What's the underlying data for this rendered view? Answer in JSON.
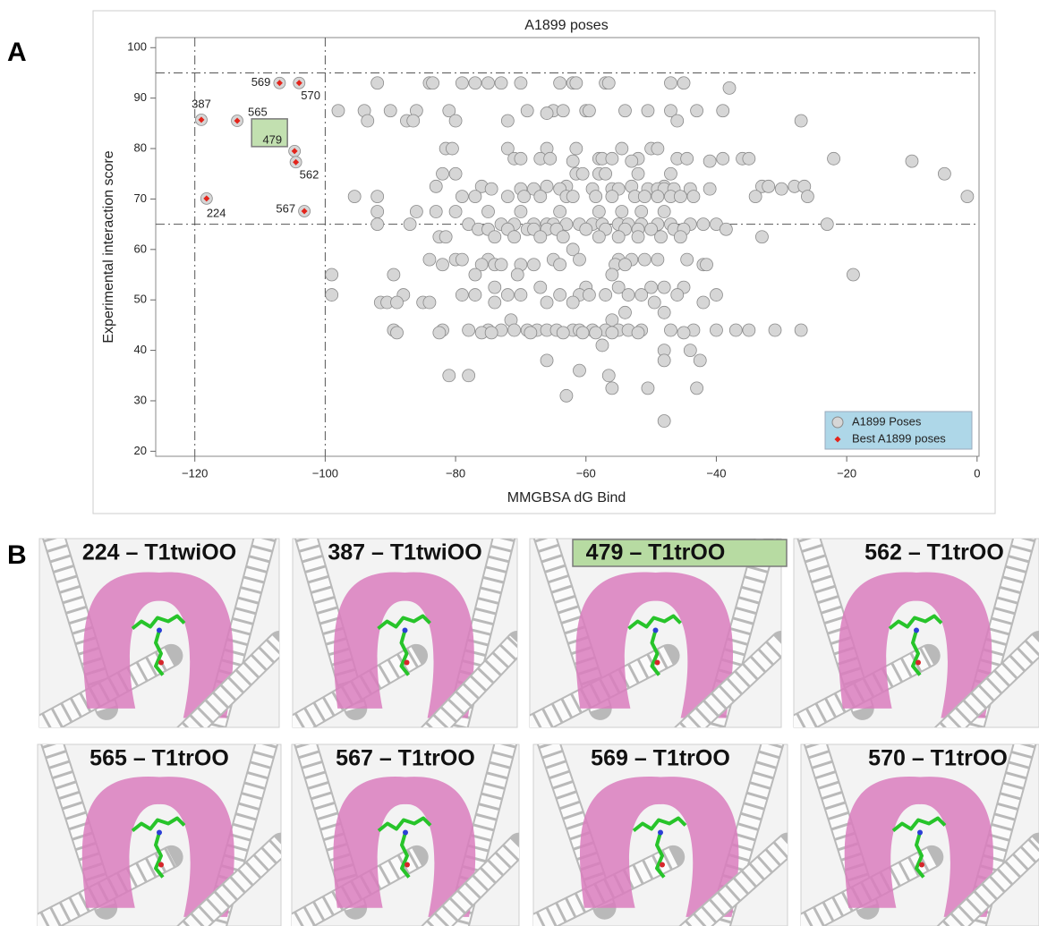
{
  "chart_data": {
    "type": "scatter",
    "title": "A1899 poses",
    "x_label": "MMGBSA dG Bind",
    "y_label": "Experimental interaction score",
    "xlim": [
      -126,
      0.3
    ],
    "ylim": [
      19,
      102
    ],
    "xticks": [
      {
        "value": -120,
        "label": "−120"
      },
      {
        "value": -100,
        "label": "−100"
      },
      {
        "value": -80,
        "label": "−80"
      },
      {
        "value": -60,
        "label": "−60"
      },
      {
        "value": -40,
        "label": "−40"
      },
      {
        "value": -20,
        "label": "−20"
      },
      0
    ],
    "yticks": [
      20,
      30,
      40,
      50,
      60,
      70,
      80,
      90,
      100
    ],
    "reference_lines": {
      "x": [
        -120,
        -100
      ],
      "y": [
        95,
        65
      ]
    },
    "legend": "lower right",
    "series": [
      {
        "name": "A1899 Poses",
        "color": "#d6d6d6",
        "x": [
          -92,
          -84,
          -83.5,
          -79,
          -77,
          -75,
          -73,
          -70,
          -64,
          -62,
          -61.5,
          -57,
          -56.5,
          -47,
          -45,
          -38,
          -98,
          -94,
          -90,
          -86,
          -81,
          -69,
          -65,
          -63.5,
          -60,
          -59.5,
          -54,
          -50.5,
          -47,
          -43,
          -39,
          -93.5,
          -87.5,
          -86.5,
          -80,
          -72,
          -46,
          -27,
          -66,
          -81.5,
          -80.5,
          -72,
          -66,
          -61.5,
          -54.5,
          -50,
          -49,
          -71,
          -70,
          -67,
          -65.5,
          -58,
          -57.5,
          -56,
          -52,
          -46,
          -44.5,
          -39,
          -36,
          -35,
          -22,
          -62,
          -53,
          -41,
          -10,
          -82,
          -80,
          -61.5,
          -60.5,
          -58,
          -57,
          -52,
          -47,
          -5,
          -83,
          -76,
          -66,
          -63,
          -53,
          -48,
          -33,
          -32,
          -28,
          -26.5,
          -74.5,
          -70,
          -68,
          -64,
          -59,
          -56,
          -55,
          -50.5,
          -49,
          -48,
          -46.5,
          -44,
          -41,
          -30,
          -95.5,
          -92,
          -79,
          -77,
          -72,
          -69.5,
          -67,
          -63,
          -62,
          -58.5,
          -56,
          -52.5,
          -51,
          -49,
          -47,
          -45.5,
          -43.5,
          -34,
          -26,
          -1.5,
          -92,
          -86,
          -83,
          -80,
          -75,
          -70,
          -64,
          -58,
          -54.5,
          -51.5,
          -48,
          -92,
          -87,
          -78,
          -73,
          -71,
          -68,
          -66,
          -65,
          -63,
          -61,
          -59,
          -57.5,
          -55,
          -53.5,
          -51.5,
          -49,
          -47,
          -44,
          -42,
          -40,
          -23,
          -76.5,
          -75,
          -72,
          -69,
          -68,
          -66,
          -64.5,
          -60,
          -57,
          -54,
          -52,
          -50,
          -46.5,
          -45,
          -38.5,
          -82.5,
          -81.5,
          -74,
          -71,
          -67,
          -63.5,
          -58,
          -55,
          -52,
          -48.5,
          -45.5,
          -33,
          -62,
          -84,
          -80,
          -79,
          -75,
          -65,
          -61,
          -55,
          -53,
          -51,
          -49,
          -44.5,
          -82,
          -76,
          -74,
          -73,
          -70,
          -68,
          -64,
          -55.5,
          -54,
          -42,
          -41.5,
          -99,
          -89.5,
          -77,
          -70.5,
          -56,
          -19,
          -74,
          -67,
          -60,
          -55,
          -50,
          -48,
          -45,
          -99,
          -88,
          -79,
          -77,
          -72,
          -70,
          -64,
          -61,
          -59.5,
          -57,
          -53.5,
          -51.5,
          -46,
          -40,
          -91.5,
          -90.5,
          -89,
          -85,
          -84,
          -74,
          -66,
          -62,
          -49.5,
          -42,
          -54,
          -48,
          -71.5,
          -56,
          -89.5,
          -82,
          -78,
          -75,
          -73,
          -71,
          -69,
          -67.5,
          -66,
          -64.5,
          -62,
          -61,
          -59,
          -57,
          -55,
          -53.5,
          -51.5,
          -47,
          -43.5,
          -40,
          -37,
          -35,
          -31,
          -27,
          -89,
          -82.5,
          -76,
          -74.5,
          -68.5,
          -63.5,
          -60.5,
          -58.5,
          -56,
          -52,
          -45,
          -57.5,
          -48,
          -44,
          -66,
          -48,
          -42.5,
          -61,
          -81,
          -78,
          -56.5,
          -56,
          -50.5,
          -43,
          -63,
          -48
        ],
        "values": [
          93,
          93,
          93,
          93,
          93,
          93,
          93,
          93,
          93,
          93,
          93,
          93,
          93,
          93,
          93,
          92,
          87.5,
          87.5,
          87.5,
          87.5,
          87.5,
          87.5,
          87.5,
          87.5,
          87.5,
          87.5,
          87.5,
          87.5,
          87.5,
          87.5,
          87.5,
          85.5,
          85.5,
          85.5,
          85.5,
          85.5,
          85.5,
          85.5,
          87,
          80,
          80,
          80,
          80,
          80,
          80,
          80,
          80,
          78,
          78,
          78,
          78,
          78,
          78,
          78,
          78,
          78,
          78,
          78,
          78,
          78,
          78,
          77.5,
          77.5,
          77.5,
          77.5,
          75,
          75,
          75,
          75,
          75,
          75,
          75,
          75,
          75,
          72.5,
          72.5,
          72.5,
          72.5,
          72.5,
          72.5,
          72.5,
          72.5,
          72.5,
          72.5,
          72,
          72,
          72,
          72,
          72,
          72,
          72,
          72,
          72,
          72,
          72,
          72,
          72,
          72,
          70.5,
          70.5,
          70.5,
          70.5,
          70.5,
          70.5,
          70.5,
          70.5,
          70.5,
          70.5,
          70.5,
          70.5,
          70.5,
          70.5,
          70.5,
          70.5,
          70.5,
          70.5,
          70.5,
          70.5,
          67.5,
          67.5,
          67.5,
          67.5,
          67.5,
          67.5,
          67.5,
          67.5,
          67.5,
          67.5,
          67.5,
          65,
          65,
          65,
          65,
          65,
          65,
          65,
          65,
          65,
          65,
          65,
          65,
          65,
          65,
          65,
          65,
          65,
          65,
          65,
          65,
          65,
          64,
          64,
          64,
          64,
          64,
          64,
          64,
          64,
          64,
          64,
          64,
          64,
          64,
          64,
          64,
          62.5,
          62.5,
          62.5,
          62.5,
          62.5,
          62.5,
          62.5,
          62.5,
          62.5,
          62.5,
          62.5,
          62.5,
          60,
          58,
          58,
          58,
          58,
          58,
          58,
          58,
          58,
          58,
          58,
          58,
          57,
          57,
          57,
          57,
          57,
          57,
          57,
          57,
          57,
          57,
          57,
          55,
          55,
          55,
          55,
          55,
          55,
          52.5,
          52.5,
          52.5,
          52.5,
          52.5,
          52.5,
          52.5,
          51,
          51,
          51,
          51,
          51,
          51,
          51,
          51,
          51,
          51,
          51,
          51,
          51,
          51,
          49.5,
          49.5,
          49.5,
          49.5,
          49.5,
          49.5,
          49.5,
          49.5,
          49.5,
          49.5,
          47.5,
          47.5,
          46,
          46,
          44,
          44,
          44,
          44,
          44,
          44,
          44,
          44,
          44,
          44,
          44,
          44,
          44,
          44,
          44,
          44,
          44,
          44,
          44,
          44,
          44,
          44,
          44,
          44,
          43.5,
          43.5,
          43.5,
          43.5,
          43.5,
          43.5,
          43.5,
          43.5,
          43.5,
          43.5,
          43.5,
          41,
          40,
          40,
          38,
          38,
          38,
          36,
          35,
          35,
          35,
          32.5,
          32.5,
          32.5,
          31,
          26
        ]
      },
      {
        "name": "Best A1899 poses",
        "color": "#e3241b",
        "x": [
          -107,
          -104,
          -119,
          -113.5,
          -104.7,
          -104.5,
          -118.2,
          -103.2
        ],
        "values": [
          93,
          93,
          85.7,
          85.5,
          79.5,
          77.3,
          70.1,
          67.6
        ],
        "labels": [
          "569",
          "570",
          "387",
          "565",
          "479",
          "562",
          "224",
          "567"
        ],
        "highlight": "479"
      }
    ]
  },
  "panel_labels": {
    "a": "A",
    "b": "B"
  },
  "structures": [
    {
      "title": "224 – T1twiOO"
    },
    {
      "title": "387 – T1twiOO"
    },
    {
      "title": "479 – T1trOO",
      "highlight": true
    },
    {
      "title": "562 – T1trOO"
    },
    {
      "title": "565 – T1trOO"
    },
    {
      "title": "567 – T1trOO"
    },
    {
      "title": "569 – T1trOO"
    },
    {
      "title": "570 – T1trOO"
    }
  ]
}
